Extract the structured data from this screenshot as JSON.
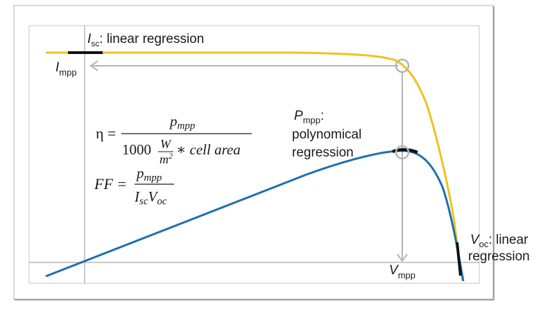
{
  "colors": {
    "iv_curve": "#F2C11B",
    "power_curve": "#1F6FB0",
    "guide": "#B4B4B4",
    "frame": "#C8C8C8",
    "segment": "#111111"
  },
  "labels": {
    "isc_symbol": "I",
    "isc_sub": "sc",
    "isc_text": ": linear regression",
    "impp_symbol": "I",
    "impp_sub": "mpp",
    "pmpp_symbol": "P",
    "pmpp_sub": "mpp",
    "pmpp_colon": ":",
    "pmpp_line2": "polynomical",
    "pmpp_line3": "regression",
    "voc_symbol": "V",
    "voc_sub": "oc",
    "voc_text": ": linear",
    "voc_line2": "regression",
    "vmpp_symbol": "V",
    "vmpp_sub": "mpp"
  },
  "formulas": {
    "eta": {
      "lhs": "η =",
      "num_main": "p",
      "num_sub": "mpp",
      "den_const": "1000",
      "den_unit_num": "W",
      "den_unit_den": "m",
      "den_unit_exp": "2",
      "den_rest": "∗ cell area"
    },
    "ff": {
      "lhs": "FF =",
      "num_main": "p",
      "num_sub": "mpp",
      "den_i": "I",
      "den_i_sub": "sc",
      "den_v": "V",
      "den_v_sub": "oc"
    }
  }
}
